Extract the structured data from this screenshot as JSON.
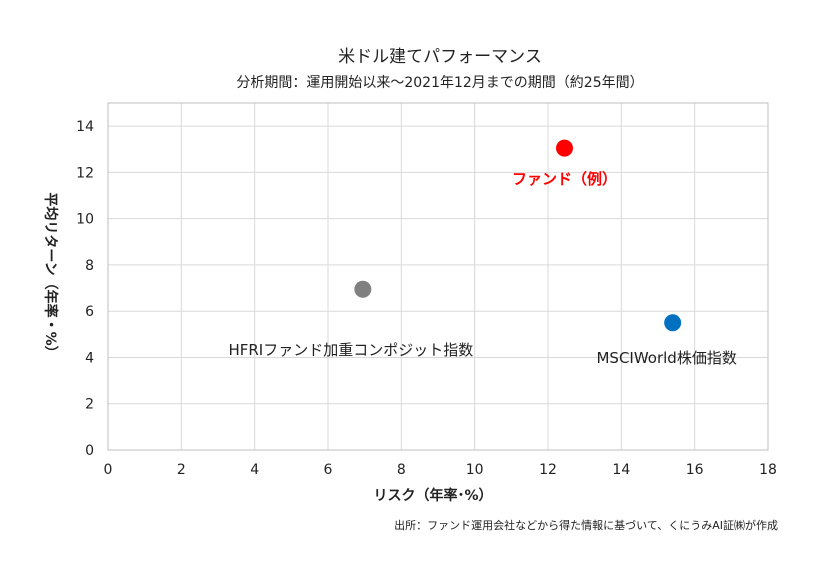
{
  "chart_data": {
    "type": "scatter",
    "title": "米ドル建てパフォーマンス",
    "subtitle": "分析期間：運用開始以来～2021年12月までの期間（約25年間）",
    "xlabel": "リスク（年率･%）",
    "ylabel": "平均リターン（年率・%）",
    "xlim": [
      0,
      18
    ],
    "ylim": [
      0,
      15
    ],
    "xticks": [
      0,
      2,
      4,
      6,
      8,
      10,
      12,
      14,
      16,
      18
    ],
    "yticks": [
      0,
      2,
      4,
      6,
      8,
      10,
      12,
      14
    ],
    "grid": true,
    "points": [
      {
        "label": "ファンド（例）",
        "x": 12.45,
        "y": 13.05,
        "color": "#ff0000",
        "highlight": true
      },
      {
        "label": "HFRIファンド加重コンポジット指数",
        "x": 6.95,
        "y": 6.95,
        "color": "#808080",
        "highlight": false
      },
      {
        "label": "MSCIWorld株価指数",
        "x": 15.4,
        "y": 5.5,
        "color": "#0070c0",
        "highlight": false
      }
    ],
    "note": "出所：ファンド運用会社などから得た情報に基づいて、くにうみAI証㈱が作成"
  }
}
